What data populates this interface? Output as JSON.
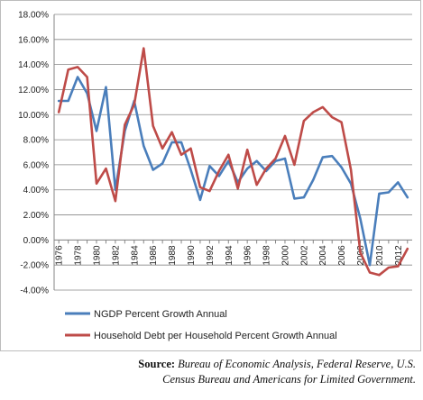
{
  "chart_data": {
    "type": "line",
    "title": "",
    "xlabel": "",
    "ylabel": "",
    "ylim": [
      -4,
      18
    ],
    "y_ticks": [
      "-4.00%",
      "-2.00%",
      "0.00%",
      "2.00%",
      "4.00%",
      "6.00%",
      "8.00%",
      "10.00%",
      "12.00%",
      "14.00%",
      "16.00%",
      "18.00%"
    ],
    "x_tick_labels": [
      "1976",
      "1978",
      "1980",
      "1982",
      "1984",
      "1986",
      "1988",
      "1990",
      "1992",
      "1994",
      "1996",
      "1998",
      "2000",
      "2002",
      "2004",
      "2006",
      "2008",
      "2010",
      "2012"
    ],
    "x": [
      1976,
      1977,
      1978,
      1979,
      1980,
      1981,
      1982,
      1983,
      1984,
      1985,
      1986,
      1987,
      1988,
      1989,
      1990,
      1991,
      1992,
      1993,
      1994,
      1995,
      1996,
      1997,
      1998,
      1999,
      2000,
      2001,
      2002,
      2003,
      2004,
      2005,
      2006,
      2007,
      2008,
      2009,
      2010,
      2011,
      2012,
      2013
    ],
    "grid": true,
    "legend_position": "bottom",
    "series": [
      {
        "name": "NGDP Percent Growth Annual",
        "color": "#4a7ebb",
        "values": [
          11.1,
          11.1,
          13.0,
          11.7,
          8.7,
          12.2,
          4.0,
          8.7,
          11.1,
          7.5,
          5.6,
          6.1,
          7.8,
          7.8,
          5.6,
          3.2,
          5.9,
          5.1,
          6.3,
          4.6,
          5.7,
          6.3,
          5.5,
          6.3,
          6.5,
          3.3,
          3.4,
          4.8,
          6.6,
          6.7,
          5.8,
          4.5,
          1.7,
          -2.0,
          3.7,
          3.8,
          4.6,
          3.4
        ]
      },
      {
        "name": "Household Debt per Household Percent Growth Annual",
        "color": "#be4b48",
        "values": [
          10.2,
          13.6,
          13.8,
          13.0,
          4.5,
          5.7,
          3.1,
          9.2,
          10.8,
          15.3,
          9.1,
          7.3,
          8.6,
          6.8,
          7.3,
          4.2,
          3.9,
          5.5,
          6.8,
          4.1,
          7.2,
          4.4,
          5.7,
          6.5,
          8.3,
          6.0,
          9.5,
          10.2,
          10.6,
          9.8,
          9.4,
          5.6,
          -1.0,
          -2.6,
          -2.8,
          -2.2,
          -2.1,
          -0.7
        ]
      }
    ]
  },
  "source": {
    "label": "Source:",
    "line1": "Bureau of Economic Analysis, Federal Reserve, U.S.",
    "line2": "Census Bureau and Americans for Limited Government."
  }
}
